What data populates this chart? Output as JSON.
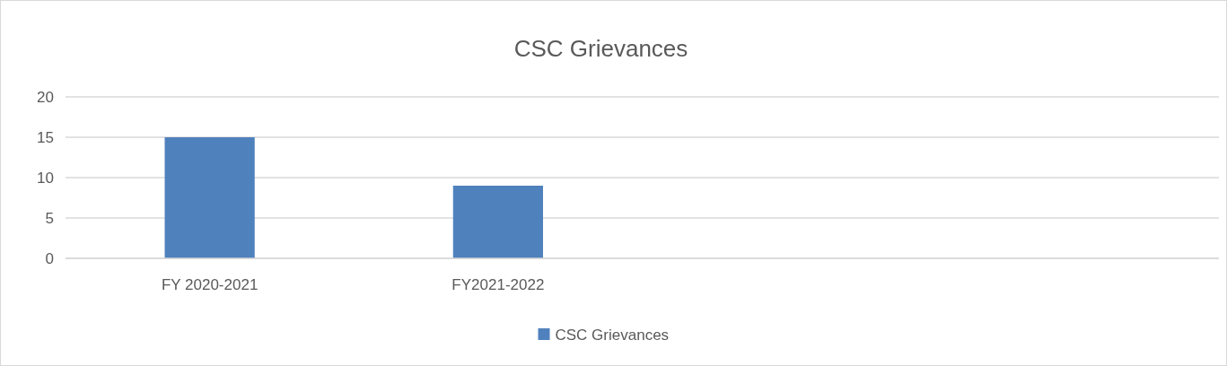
{
  "chart_data": {
    "type": "bar",
    "title": "CSC Grievances",
    "categories": [
      "FY 2020-2021",
      "FY2021-2022",
      null,
      null
    ],
    "series": [
      {
        "name": "CSC Grievances",
        "color": "#4f81bd",
        "values": [
          15,
          9,
          null,
          null
        ]
      }
    ],
    "ylim": [
      0,
      20
    ],
    "yticks": [
      0,
      5,
      10,
      15,
      20
    ],
    "grid": "y",
    "legend": "bottom"
  }
}
